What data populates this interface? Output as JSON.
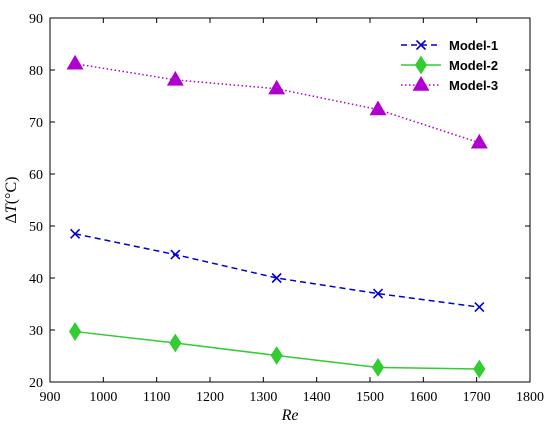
{
  "chart_data": {
    "type": "line",
    "xlabel": "Re",
    "ylabel_delta": "Δ",
    "ylabel_var": "T",
    "ylabel_unit": "(°C)",
    "xlim": [
      900,
      1800
    ],
    "ylim": [
      20,
      90
    ],
    "xticks": [
      900,
      1000,
      1100,
      1200,
      1300,
      1400,
      1500,
      1600,
      1700,
      1800
    ],
    "yticks": [
      20,
      30,
      40,
      50,
      60,
      70,
      80,
      90
    ],
    "grid": false,
    "legend_position": "top-right",
    "series": [
      {
        "name": "Model-1",
        "color": "#0000cc",
        "marker": "x",
        "line_style": "dashed",
        "x": [
          947,
          1135,
          1325,
          1515,
          1705
        ],
        "y": [
          48.5,
          44.5,
          40.0,
          37.0,
          34.4
        ]
      },
      {
        "name": "Model-2",
        "color": "#33cc33",
        "marker": "diamond",
        "line_style": "solid",
        "x": [
          947,
          1135,
          1325,
          1515,
          1705
        ],
        "y": [
          29.7,
          27.5,
          25.1,
          22.8,
          22.5
        ]
      },
      {
        "name": "Model-3",
        "color": "#b000d0",
        "marker": "triangle",
        "line_style": "dotted",
        "x": [
          947,
          1135,
          1325,
          1515,
          1705
        ],
        "y": [
          81.2,
          78.1,
          76.4,
          72.4,
          66.0
        ]
      }
    ]
  }
}
